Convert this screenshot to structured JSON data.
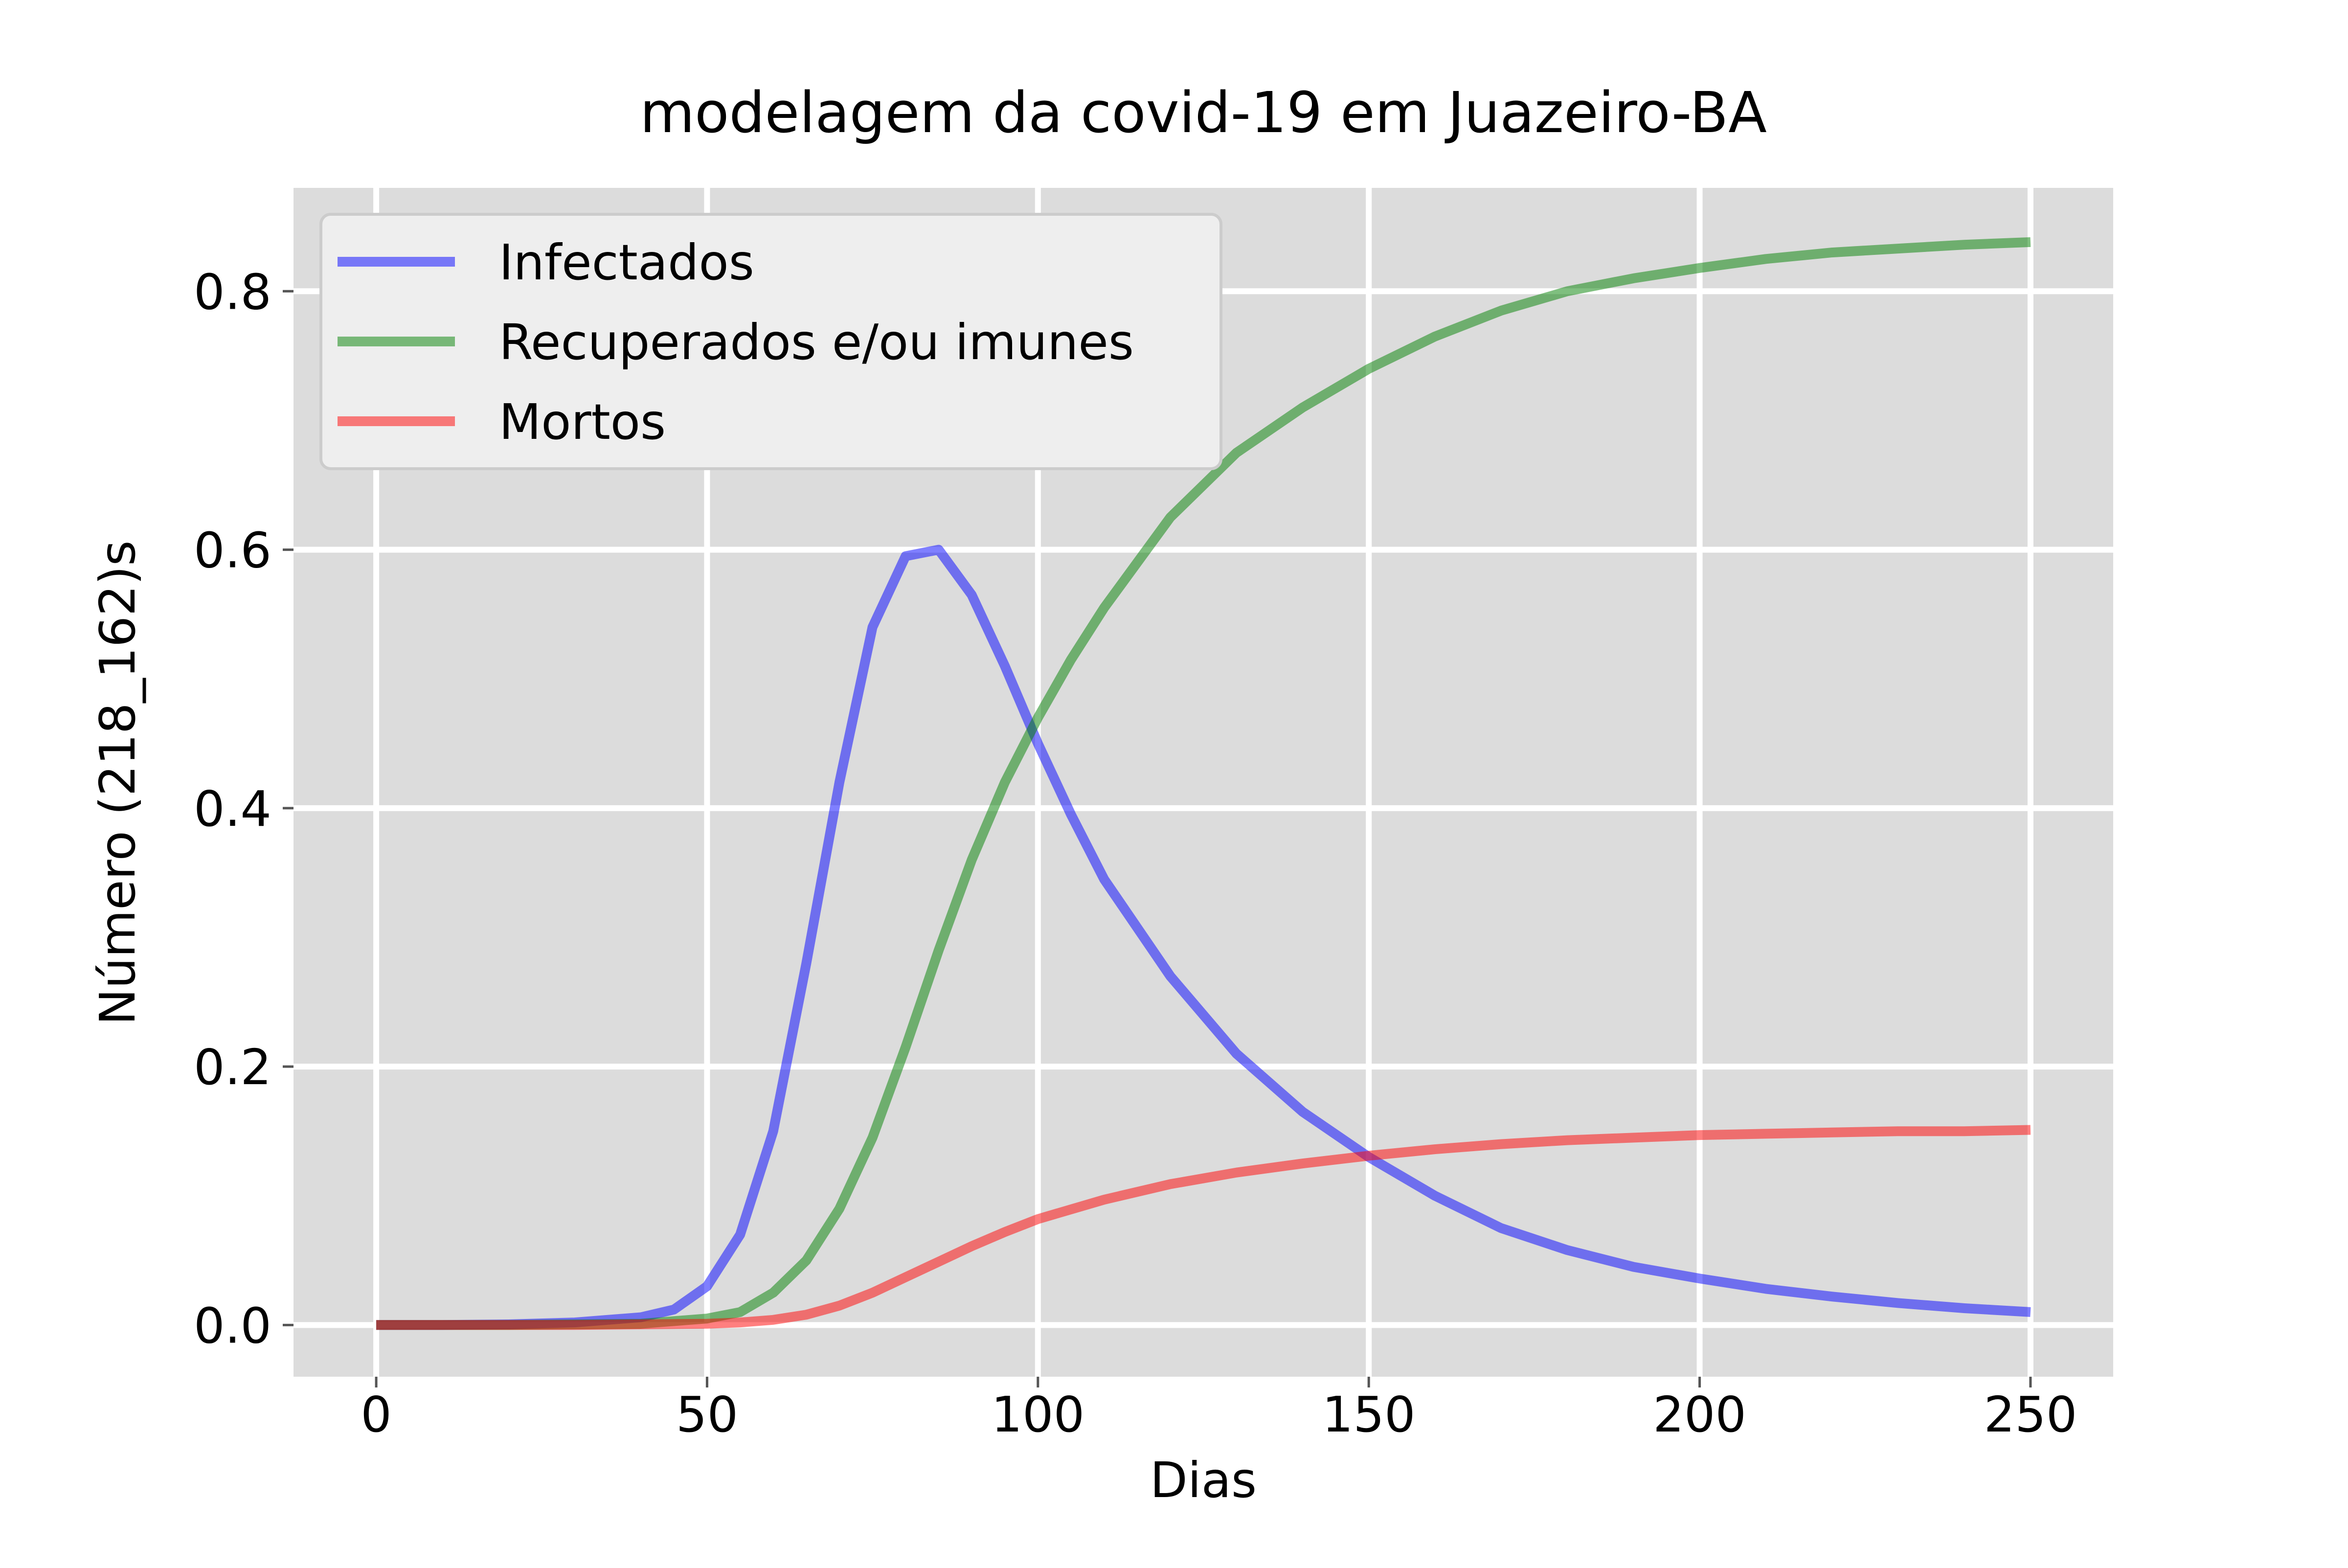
{
  "chart_data": {
    "type": "line",
    "title": "modelagem da covid-19 em Juazeiro-BA",
    "xlabel": "Dias",
    "ylabel": "Número (218_162)s",
    "xlim": [
      -12.5,
      262.5
    ],
    "ylim": [
      -0.04,
      0.88
    ],
    "xticks": [
      0,
      50,
      100,
      150,
      200,
      250
    ],
    "xtick_labels": [
      "0",
      "50",
      "100",
      "150",
      "200",
      "250"
    ],
    "yticks": [
      0.0,
      0.2,
      0.4,
      0.6,
      0.8
    ],
    "ytick_labels": [
      "0.0",
      "0.2",
      "0.4",
      "0.6",
      "0.8"
    ],
    "grid": true,
    "background": "#dcdcdc",
    "legend_position": "upper-left",
    "series": [
      {
        "name": "Infectados",
        "color": "#0000ff",
        "x": [
          0,
          10,
          20,
          30,
          40,
          45,
          50,
          55,
          60,
          65,
          70,
          75,
          80,
          85,
          90,
          95,
          100,
          105,
          110,
          120,
          130,
          140,
          150,
          160,
          170,
          180,
          190,
          200,
          210,
          220,
          230,
          240,
          250
        ],
        "y": [
          0.0,
          0.0,
          0.0005,
          0.002,
          0.006,
          0.012,
          0.03,
          0.07,
          0.15,
          0.28,
          0.42,
          0.54,
          0.595,
          0.6,
          0.565,
          0.51,
          0.45,
          0.395,
          0.345,
          0.27,
          0.21,
          0.165,
          0.13,
          0.1,
          0.075,
          0.058,
          0.045,
          0.036,
          0.028,
          0.022,
          0.017,
          0.013,
          0.01
        ]
      },
      {
        "name": "Recuperados e/ou imunes",
        "color": "#008000",
        "x": [
          0,
          10,
          20,
          30,
          40,
          50,
          55,
          60,
          65,
          70,
          75,
          80,
          85,
          90,
          95,
          100,
          105,
          110,
          120,
          130,
          140,
          150,
          160,
          170,
          180,
          190,
          200,
          210,
          220,
          230,
          240,
          250
        ],
        "y": [
          0.0,
          0.0,
          0.0,
          0.0005,
          0.001,
          0.005,
          0.01,
          0.025,
          0.05,
          0.09,
          0.145,
          0.215,
          0.29,
          0.36,
          0.42,
          0.47,
          0.515,
          0.555,
          0.625,
          0.675,
          0.71,
          0.74,
          0.765,
          0.785,
          0.8,
          0.81,
          0.818,
          0.825,
          0.83,
          0.833,
          0.836,
          0.838
        ]
      },
      {
        "name": "Mortos",
        "color": "#ff0000",
        "x": [
          0,
          10,
          20,
          30,
          40,
          50,
          55,
          60,
          65,
          70,
          75,
          80,
          85,
          90,
          95,
          100,
          110,
          120,
          130,
          140,
          150,
          160,
          170,
          180,
          190,
          200,
          210,
          220,
          230,
          240,
          250
        ],
        "y": [
          0.0,
          0.0,
          0.0,
          0.0,
          0.0005,
          0.001,
          0.002,
          0.004,
          0.008,
          0.015,
          0.025,
          0.037,
          0.049,
          0.061,
          0.072,
          0.082,
          0.097,
          0.109,
          0.118,
          0.125,
          0.131,
          0.136,
          0.14,
          0.143,
          0.145,
          0.147,
          0.148,
          0.149,
          0.15,
          0.15,
          0.151
        ]
      }
    ]
  }
}
